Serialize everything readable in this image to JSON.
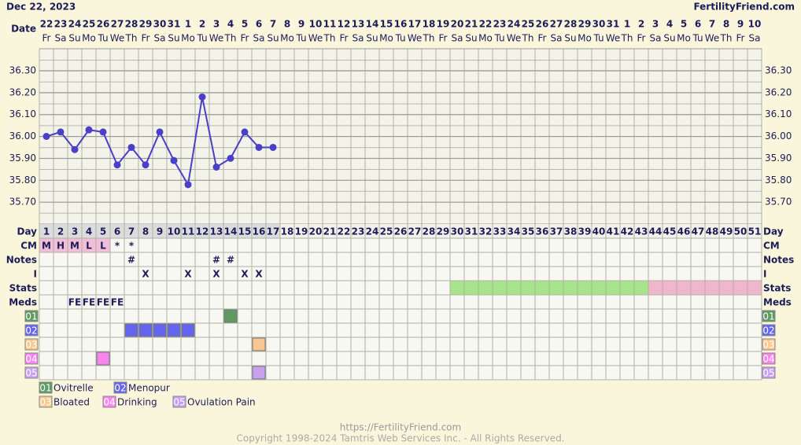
{
  "header": {
    "date": "Dec 22, 2023",
    "site": "FertilityFriend.com"
  },
  "chart_data": {
    "type": "line",
    "x_label": "Date",
    "categories": [
      "22",
      "23",
      "24",
      "25",
      "26",
      "27",
      "28",
      "29",
      "30",
      "31",
      "1",
      "2",
      "3",
      "4",
      "5",
      "6",
      "7",
      "8",
      "9",
      "10",
      "11",
      "12",
      "13",
      "14",
      "15",
      "16",
      "17",
      "18",
      "19",
      "20",
      "21",
      "22",
      "23",
      "24",
      "25",
      "26",
      "27",
      "28",
      "29",
      "30",
      "31",
      "1",
      "2",
      "3",
      "4",
      "5",
      "6",
      "7",
      "8",
      "9",
      "10"
    ],
    "weekdays": [
      "Fr",
      "Sa",
      "Su",
      "Mo",
      "Tu",
      "We",
      "Th",
      "Fr",
      "Sa",
      "Su",
      "Mo",
      "Tu",
      "We",
      "Th",
      "Fr",
      "Sa",
      "Su",
      "Mo",
      "Tu",
      "We",
      "Th",
      "Fr",
      "Sa",
      "Su",
      "Mo",
      "Tu",
      "We",
      "Th",
      "Fr",
      "Sa",
      "Su",
      "Mo",
      "Tu",
      "We",
      "Th",
      "Fr",
      "Sa",
      "Su",
      "Mo",
      "Tu",
      "We",
      "Th",
      "Fr",
      "Sa",
      "Su",
      "Mo",
      "Tu",
      "We",
      "Th",
      "Fr",
      "Sa"
    ],
    "values": [
      36.0,
      36.02,
      35.94,
      36.03,
      36.02,
      35.87,
      35.95,
      35.87,
      36.02,
      35.89,
      35.78,
      36.18,
      35.86,
      35.9,
      36.02,
      35.95,
      35.95,
      null,
      null,
      null,
      null,
      null,
      null,
      null,
      null,
      null,
      null,
      null,
      null,
      null,
      null,
      null,
      null,
      null,
      null,
      null,
      null,
      null,
      null,
      null,
      null,
      null,
      null,
      null,
      null,
      null,
      null,
      null,
      null,
      null,
      null
    ],
    "color": "#4a3fc8",
    "ylim": [
      35.6,
      36.4
    ],
    "yticks": [
      {
        "value": 35.7,
        "label": "35.70"
      },
      {
        "value": 35.8,
        "label": "35.80"
      },
      {
        "value": 35.9,
        "label": "35.90"
      },
      {
        "value": 36.0,
        "label": "36.00"
      },
      {
        "value": 36.1,
        "label": "36.10"
      },
      {
        "value": 36.2,
        "label": "36.20"
      },
      {
        "value": 36.3,
        "label": "36.30"
      }
    ],
    "grid": true
  },
  "rows": {
    "labels": {
      "day": "Day",
      "cm": "CM",
      "notes": "Notes",
      "i": "I",
      "stats": "Stats",
      "meds": "Meds"
    },
    "day": [
      1,
      2,
      3,
      4,
      5,
      6,
      7,
      8,
      9,
      10,
      11,
      12,
      13,
      14,
      15,
      16,
      17,
      18,
      19,
      20,
      21,
      22,
      23,
      24,
      25,
      26,
      27,
      28,
      29,
      30,
      31,
      32,
      33,
      34,
      35,
      36,
      37,
      38,
      39,
      40,
      41,
      42,
      43,
      44,
      45,
      46,
      47,
      48,
      49,
      50,
      51
    ],
    "cm": [
      "M",
      "H",
      "M",
      "L",
      "L",
      "*",
      "*",
      null,
      null,
      null,
      null,
      null,
      null,
      null,
      null,
      null,
      null,
      null,
      null,
      null,
      null,
      null,
      null,
      null,
      null,
      null,
      null,
      null,
      null,
      null,
      null,
      null,
      null,
      null,
      null,
      null,
      null,
      null,
      null,
      null,
      null,
      null,
      null,
      null,
      null,
      null,
      null,
      null,
      null,
      null,
      null
    ],
    "cm_fill": "#f2bfd8",
    "notes": [
      null,
      null,
      null,
      null,
      null,
      null,
      "#",
      null,
      null,
      null,
      null,
      null,
      "#",
      "#",
      null,
      null,
      null,
      null,
      null,
      null,
      null,
      null,
      null,
      null,
      null,
      null,
      null,
      null,
      null,
      null,
      null,
      null,
      null,
      null,
      null,
      null,
      null,
      null,
      null,
      null,
      null,
      null,
      null,
      null,
      null,
      null,
      null,
      null,
      null,
      null,
      null
    ],
    "i": [
      null,
      null,
      null,
      null,
      null,
      null,
      null,
      "X",
      null,
      null,
      "X",
      null,
      "X",
      null,
      "X",
      "X",
      null,
      null,
      null,
      null,
      null,
      null,
      null,
      null,
      null,
      null,
      null,
      null,
      null,
      null,
      null,
      null,
      null,
      null,
      null,
      null,
      null,
      null,
      null,
      null,
      null,
      null,
      null,
      null,
      null,
      null,
      null,
      null,
      null,
      null,
      null
    ],
    "stats": [
      null,
      null,
      null,
      null,
      null,
      null,
      null,
      null,
      null,
      null,
      null,
      null,
      null,
      null,
      null,
      null,
      null,
      null,
      null,
      null,
      null,
      null,
      null,
      null,
      null,
      null,
      null,
      null,
      null,
      "#a8e48c",
      "#a8e48c",
      "#a8e48c",
      "#a8e48c",
      "#a8e48c",
      "#a8e48c",
      "#a8e48c",
      "#a8e48c",
      "#a8e48c",
      "#a8e48c",
      "#a8e48c",
      "#a8e48c",
      "#a8e48c",
      "#a8e48c",
      "#f0b6cc",
      "#f0b6cc",
      "#f0b6cc",
      "#f0b6cc",
      "#f0b6cc",
      "#f0b6cc",
      "#f0b6cc",
      "#f0b6cc"
    ],
    "meds": [
      null,
      null,
      "FE",
      "FE",
      "FE",
      "FE",
      null,
      null,
      null,
      null,
      null,
      null,
      null,
      null,
      null,
      null,
      null,
      null,
      null,
      null,
      null,
      null,
      null,
      null,
      null,
      null,
      null,
      null,
      null,
      null,
      null,
      null,
      null,
      null,
      null,
      null,
      null,
      null,
      null,
      null,
      null,
      null,
      null,
      null,
      null,
      null,
      null,
      null,
      null,
      null,
      null
    ],
    "med_rows": [
      {
        "code": "01",
        "name": "Ovitrelle",
        "color": "#5e9a62",
        "days": [
          0,
          0,
          0,
          0,
          0,
          0,
          0,
          0,
          0,
          0,
          0,
          0,
          0,
          1,
          0,
          0,
          0,
          0,
          0,
          0,
          0,
          0,
          0,
          0,
          0,
          0,
          0,
          0,
          0,
          0,
          0,
          0,
          0,
          0,
          0,
          0,
          0,
          0,
          0,
          0,
          0,
          0,
          0,
          0,
          0,
          0,
          0,
          0,
          0,
          0,
          0
        ]
      },
      {
        "code": "02",
        "name": "Menopur",
        "color": "#6464ee",
        "days": [
          0,
          0,
          0,
          0,
          0,
          0,
          1,
          1,
          1,
          1,
          1,
          0,
          0,
          0,
          0,
          0,
          0,
          0,
          0,
          0,
          0,
          0,
          0,
          0,
          0,
          0,
          0,
          0,
          0,
          0,
          0,
          0,
          0,
          0,
          0,
          0,
          0,
          0,
          0,
          0,
          0,
          0,
          0,
          0,
          0,
          0,
          0,
          0,
          0,
          0,
          0
        ]
      },
      {
        "code": "03",
        "name": "Bloated",
        "color": "#f8c890",
        "days": [
          0,
          0,
          0,
          0,
          0,
          0,
          0,
          0,
          0,
          0,
          0,
          0,
          0,
          0,
          0,
          1,
          0,
          0,
          0,
          0,
          0,
          0,
          0,
          0,
          0,
          0,
          0,
          0,
          0,
          0,
          0,
          0,
          0,
          0,
          0,
          0,
          0,
          0,
          0,
          0,
          0,
          0,
          0,
          0,
          0,
          0,
          0,
          0,
          0,
          0,
          0
        ]
      },
      {
        "code": "04",
        "name": "Drinking",
        "color": "#f884f0",
        "days": [
          0,
          0,
          0,
          0,
          1,
          0,
          0,
          0,
          0,
          0,
          0,
          0,
          0,
          0,
          0,
          0,
          0,
          0,
          0,
          0,
          0,
          0,
          0,
          0,
          0,
          0,
          0,
          0,
          0,
          0,
          0,
          0,
          0,
          0,
          0,
          0,
          0,
          0,
          0,
          0,
          0,
          0,
          0,
          0,
          0,
          0,
          0,
          0,
          0,
          0,
          0
        ]
      },
      {
        "code": "05",
        "name": "Ovulation Pain",
        "color": "#c8a0f0",
        "days": [
          0,
          0,
          0,
          0,
          0,
          0,
          0,
          0,
          0,
          0,
          0,
          0,
          0,
          0,
          0,
          1,
          0,
          0,
          0,
          0,
          0,
          0,
          0,
          0,
          0,
          0,
          0,
          0,
          0,
          0,
          0,
          0,
          0,
          0,
          0,
          0,
          0,
          0,
          0,
          0,
          0,
          0,
          0,
          0,
          0,
          0,
          0,
          0,
          0,
          0,
          0
        ]
      }
    ]
  },
  "footer": {
    "url": "https://FertilityFriend.com",
    "copyright": "Copyright 1998-2024 Tamtris Web Services Inc. - All Rights Reserved."
  }
}
